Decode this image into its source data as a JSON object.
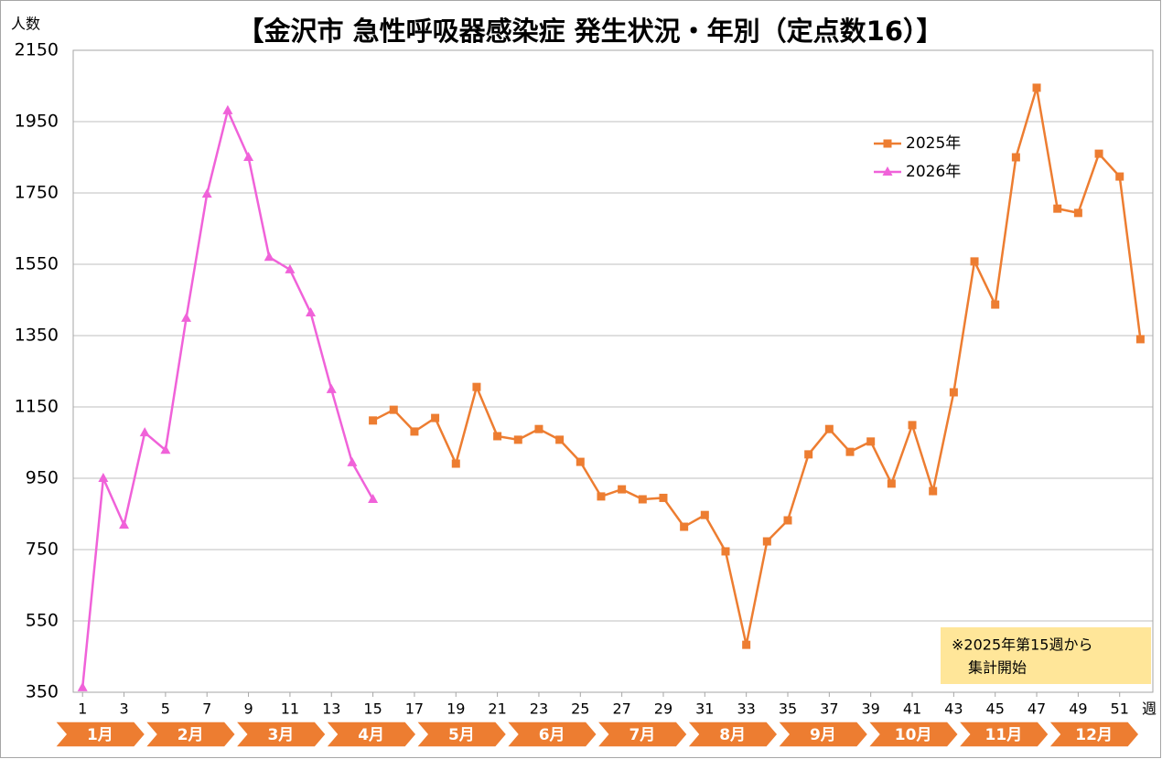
{
  "chart_data": {
    "type": "line",
    "title": "【金沢市 急性呼吸器感染症 発生状況・年別（定点数16）】",
    "y_label": "人数",
    "x_label": "週",
    "x": [
      1,
      2,
      3,
      4,
      5,
      6,
      7,
      8,
      9,
      10,
      11,
      12,
      13,
      14,
      15,
      16,
      17,
      18,
      19,
      20,
      21,
      22,
      23,
      24,
      25,
      26,
      27,
      28,
      29,
      30,
      31,
      32,
      33,
      34,
      35,
      36,
      37,
      38,
      39,
      40,
      41,
      42,
      43,
      44,
      45,
      46,
      47,
      48,
      49,
      50,
      51,
      52
    ],
    "xlim": [
      0.55,
      52.6
    ],
    "xticks": [
      1,
      3,
      5,
      7,
      9,
      11,
      13,
      15,
      17,
      19,
      21,
      23,
      25,
      27,
      29,
      31,
      33,
      35,
      37,
      39,
      41,
      43,
      45,
      47,
      49,
      51
    ],
    "ylim": [
      350,
      2150
    ],
    "yticks": [
      350,
      550,
      750,
      950,
      1150,
      1350,
      1550,
      1750,
      1950,
      2150
    ],
    "grid": true,
    "series": [
      {
        "name": "2025年",
        "color": "#ED7D31",
        "marker": "square",
        "values": [
          null,
          null,
          null,
          null,
          null,
          null,
          null,
          null,
          null,
          null,
          null,
          null,
          null,
          null,
          1112,
          1142,
          1081,
          1119,
          991,
          1206,
          1068,
          1058,
          1088,
          1058,
          996,
          899,
          919,
          891,
          895,
          814,
          847,
          745,
          483,
          773,
          832,
          1017,
          1088,
          1024,
          1053,
          935,
          1099,
          914,
          1191,
          1558,
          1437,
          1850,
          2045,
          1706,
          1694,
          1860,
          1796,
          1340
        ]
      },
      {
        "name": "2026年",
        "color": "#F062D9",
        "marker": "triangle",
        "values": [
          363,
          950,
          819,
          1078,
          1029,
          1399,
          1747,
          1981,
          1850,
          1570,
          1535,
          1414,
          1199,
          994,
          891,
          null,
          null,
          null,
          null,
          null,
          null,
          null,
          null,
          null,
          null,
          null,
          null,
          null,
          null,
          null,
          null,
          null,
          null,
          null,
          null,
          null,
          null,
          null,
          null,
          null,
          null,
          null,
          null,
          null,
          null,
          null,
          null,
          null,
          null,
          null,
          null,
          null
        ]
      }
    ],
    "months": [
      "1月",
      "2月",
      "3月",
      "4月",
      "5月",
      "6月",
      "7月",
      "8月",
      "9月",
      "10月",
      "11月",
      "12月"
    ],
    "note": [
      "※2025年第15週から",
      "集計開始"
    ]
  }
}
